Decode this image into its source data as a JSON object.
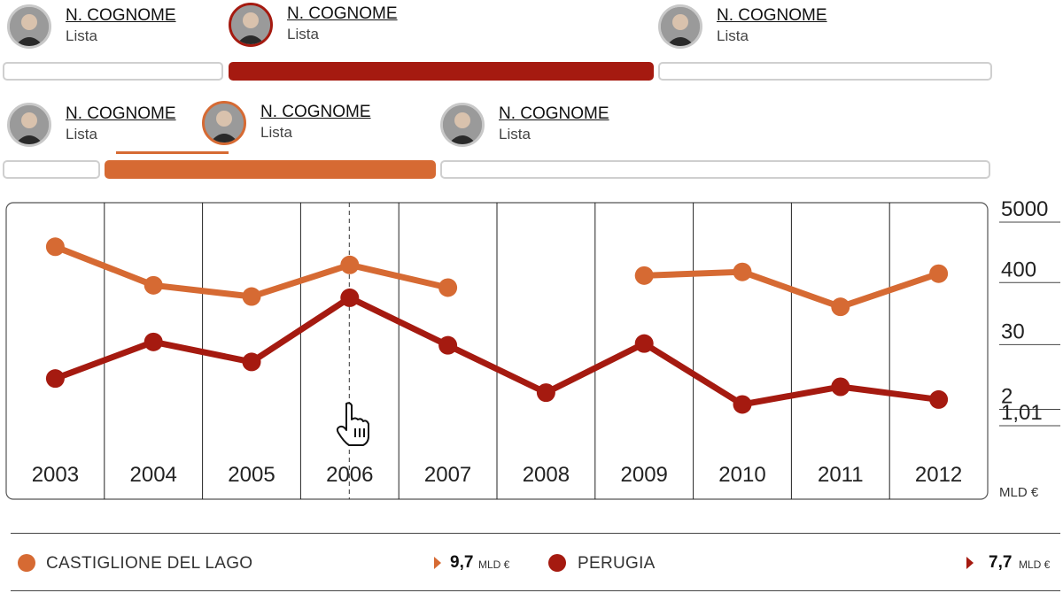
{
  "candidates_row1": [
    {
      "name": "N. COGNOME",
      "list": "Lista",
      "highlight": "none"
    },
    {
      "name": "N. COGNOME",
      "list": "Lista",
      "highlight": "red"
    },
    {
      "name": "N. COGNOME",
      "list": "Lista",
      "highlight": "none"
    }
  ],
  "candidates_row2": [
    {
      "name": "N. COGNOME",
      "list": "Lista",
      "highlight": "none"
    },
    {
      "name": "N. COGNOME",
      "list": "Lista",
      "highlight": "orange"
    },
    {
      "name": "N. COGNOME",
      "list": "Lista",
      "highlight": "none"
    }
  ],
  "colors": {
    "red": "#a51a10",
    "orange": "#d66a33",
    "grey": "#cfcfcf"
  },
  "chart_data": {
    "type": "line",
    "categories": [
      "2003",
      "2004",
      "2005",
      "2006",
      "2007",
      "2008",
      "2009",
      "2010",
      "2011",
      "2012"
    ],
    "y_tick_labels": [
      "5000",
      "400",
      "30",
      "2",
      "1,01"
    ],
    "unit_label": "MLD €",
    "scale": "log",
    "highlighted_category": "2006",
    "series": [
      {
        "name": "CASTIGLIONE DEL LAGO",
        "color": "#d66a33",
        "values": [
          1600,
          320,
          200,
          750,
          290,
          null,
          480,
          560,
          130,
          520
        ]
      },
      {
        "name": "PERUGIA",
        "color": "#a51a10",
        "values": [
          6.5,
          30,
          13,
          190,
          26,
          3.6,
          28,
          2.2,
          4.6,
          2.7
        ]
      }
    ]
  },
  "legend": [
    {
      "label": "CASTIGLIONE DEL LAGO",
      "value": "9,7",
      "unit": "MLD €",
      "color": "#d66a33"
    },
    {
      "label": "PERUGIA",
      "value": "7,7",
      "unit": "MLD €",
      "color": "#a51a10"
    }
  ]
}
